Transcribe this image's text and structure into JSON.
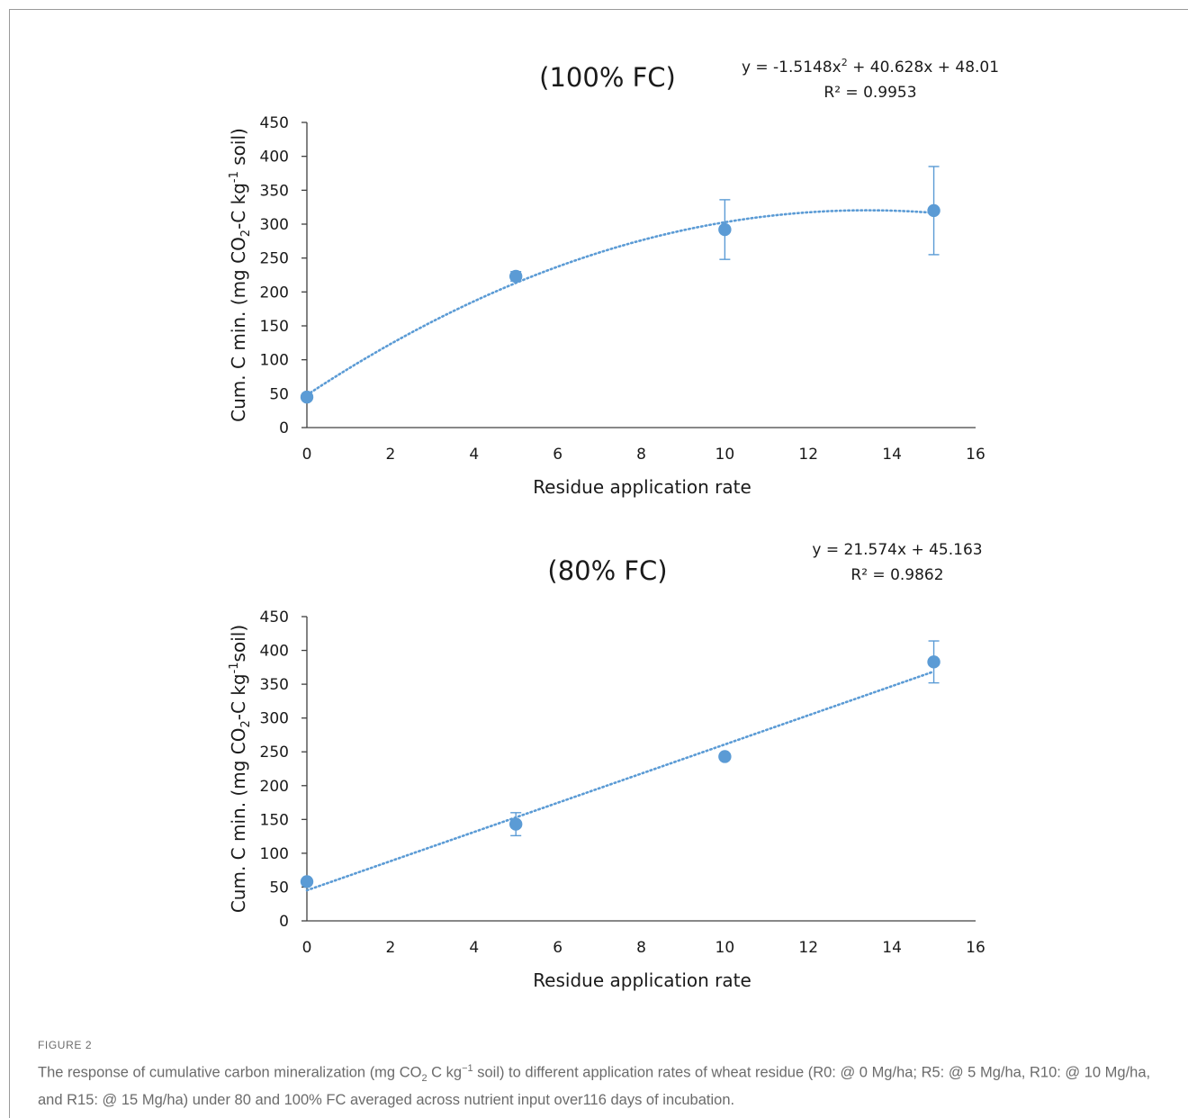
{
  "chart_data": [
    {
      "type": "scatter",
      "title": "(100% FC)",
      "xlabel": "Residue application rate",
      "ylabel_parts": {
        "pre": "Cum. C min. (mg CO",
        "sub": "2",
        "mid": "-C kg",
        "sup": "-1",
        "post": " soil)"
      },
      "xlim": [
        0,
        16
      ],
      "ylim": [
        0,
        450
      ],
      "xticks": [
        0,
        2,
        4,
        6,
        8,
        10,
        12,
        14,
        16
      ],
      "yticks": [
        0,
        50,
        100,
        150,
        200,
        250,
        300,
        350,
        400,
        450
      ],
      "series": [
        {
          "x": [
            0,
            5,
            10,
            15
          ],
          "y": [
            45,
            223,
            292,
            320
          ],
          "err": [
            0,
            7,
            44,
            65
          ]
        }
      ],
      "trendline": {
        "kind": "polynomial",
        "coefficients": [
          -1.5148,
          40.628,
          48.01
        ]
      },
      "equation": {
        "pre": "y = -1.5148x",
        "sup": "2",
        "post": " + 40.628x + 48.01"
      },
      "r_squared": "R² = 0.9953",
      "color": "#5b9bd5"
    },
    {
      "type": "scatter",
      "title": "(80% FC)",
      "xlabel": "Residue application rate",
      "ylabel_parts": {
        "pre": "Cum. C min. (mg CO",
        "sub": "2",
        "mid": "-C kg",
        "sup": "-1",
        "post": "soil)"
      },
      "xlim": [
        0,
        16
      ],
      "ylim": [
        0,
        450
      ],
      "xticks": [
        0,
        2,
        4,
        6,
        8,
        10,
        12,
        14,
        16
      ],
      "yticks": [
        0,
        50,
        100,
        150,
        200,
        250,
        300,
        350,
        400,
        450
      ],
      "series": [
        {
          "x": [
            0,
            5,
            10,
            15
          ],
          "y": [
            58,
            143,
            243,
            383
          ],
          "err": [
            0,
            17,
            0,
            31
          ]
        }
      ],
      "trendline": {
        "kind": "linear",
        "coefficients": [
          21.574,
          45.163
        ]
      },
      "equation": {
        "pre": "y = 21.574x + 45.163",
        "sup": "",
        "post": ""
      },
      "r_squared": "R² = 0.9862",
      "color": "#5b9bd5"
    }
  ],
  "caption": {
    "label": "FIGURE 2",
    "text_pre": "The response of cumulative carbon mineralization (mg CO",
    "text_sub": "2",
    "text_mid": " C kg",
    "text_sup": "−1",
    "text_post": " soil) to different application rates of wheat residue (R0: @ 0 Mg/ha; R5: @ 5 Mg/ha, R10: @ 10 Mg/ha, and R15: @ 15 Mg/ha) under 80 and 100% FC averaged across nutrient input over116 days of incubation."
  }
}
